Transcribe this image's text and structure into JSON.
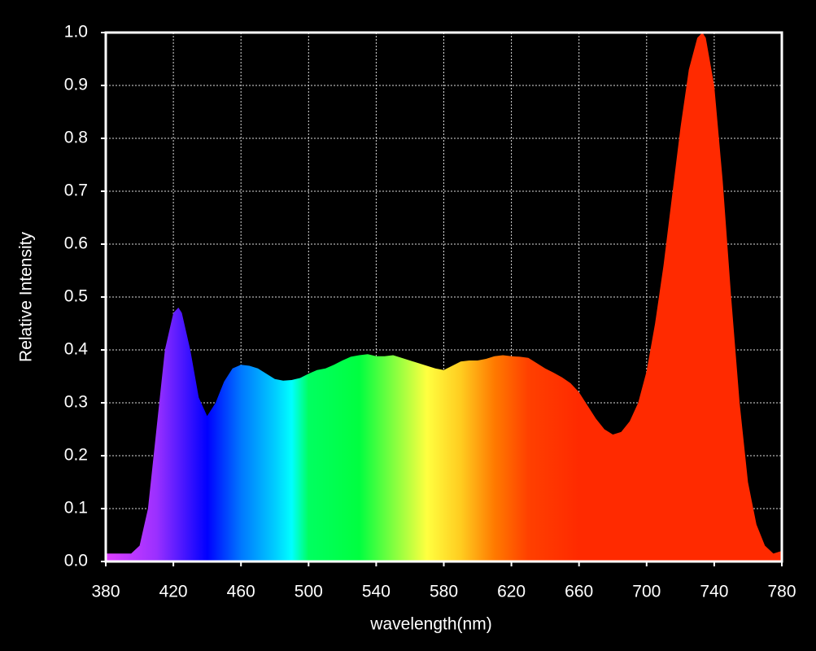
{
  "chart_data": {
    "type": "area",
    "xlabel": "wavelength(nm)",
    "ylabel": "Relative Intensity",
    "x": [
      380,
      385,
      390,
      395,
      400,
      405,
      410,
      415,
      420,
      423,
      425,
      430,
      435,
      440,
      445,
      450,
      455,
      460,
      465,
      470,
      475,
      480,
      485,
      490,
      495,
      500,
      505,
      510,
      515,
      520,
      525,
      530,
      535,
      540,
      545,
      550,
      555,
      560,
      565,
      570,
      575,
      580,
      585,
      590,
      595,
      600,
      605,
      610,
      615,
      620,
      625,
      630,
      635,
      640,
      645,
      650,
      655,
      660,
      665,
      670,
      675,
      680,
      685,
      690,
      695,
      700,
      705,
      710,
      715,
      720,
      725,
      730,
      733,
      735,
      740,
      745,
      750,
      755,
      760,
      765,
      770,
      775,
      780
    ],
    "values": [
      0.015,
      0.015,
      0.015,
      0.015,
      0.03,
      0.1,
      0.25,
      0.4,
      0.47,
      0.48,
      0.47,
      0.4,
      0.31,
      0.275,
      0.3,
      0.34,
      0.365,
      0.372,
      0.37,
      0.365,
      0.355,
      0.345,
      0.342,
      0.343,
      0.347,
      0.355,
      0.362,
      0.365,
      0.372,
      0.38,
      0.387,
      0.39,
      0.392,
      0.388,
      0.388,
      0.39,
      0.385,
      0.38,
      0.375,
      0.37,
      0.365,
      0.362,
      0.37,
      0.378,
      0.38,
      0.38,
      0.383,
      0.388,
      0.39,
      0.388,
      0.387,
      0.385,
      0.375,
      0.365,
      0.357,
      0.348,
      0.337,
      0.32,
      0.295,
      0.27,
      0.25,
      0.24,
      0.245,
      0.265,
      0.3,
      0.36,
      0.45,
      0.56,
      0.69,
      0.82,
      0.93,
      0.99,
      1.0,
      0.99,
      0.9,
      0.72,
      0.5,
      0.3,
      0.15,
      0.07,
      0.03,
      0.015,
      0.02
    ],
    "fill_gradient": [
      {
        "x": 380,
        "color": "#e040ff"
      },
      {
        "x": 410,
        "color": "#9b30ff"
      },
      {
        "x": 440,
        "color": "#0000ff"
      },
      {
        "x": 460,
        "color": "#0077ff"
      },
      {
        "x": 480,
        "color": "#00ccff"
      },
      {
        "x": 490,
        "color": "#00ffff"
      },
      {
        "x": 500,
        "color": "#00ff60"
      },
      {
        "x": 530,
        "color": "#00ff40"
      },
      {
        "x": 550,
        "color": "#80ff40"
      },
      {
        "x": 570,
        "color": "#ffff40"
      },
      {
        "x": 590,
        "color": "#ffcc20"
      },
      {
        "x": 610,
        "color": "#ff7a00"
      },
      {
        "x": 630,
        "color": "#ff4000"
      },
      {
        "x": 660,
        "color": "#ff2a00"
      },
      {
        "x": 780,
        "color": "#ff2a00"
      }
    ],
    "xlim": [
      380,
      780
    ],
    "ylim": [
      0,
      1
    ],
    "xticks": [
      380,
      420,
      460,
      500,
      540,
      580,
      620,
      660,
      700,
      740,
      780
    ],
    "yticks": [
      {
        "value": 0,
        "label": "0.0"
      },
      0.1,
      0.2,
      0.3,
      0.4,
      0.5,
      0.6,
      0.7,
      0.8,
      0.9,
      {
        "value": 1,
        "label": "1.0"
      }
    ],
    "grid": true
  }
}
